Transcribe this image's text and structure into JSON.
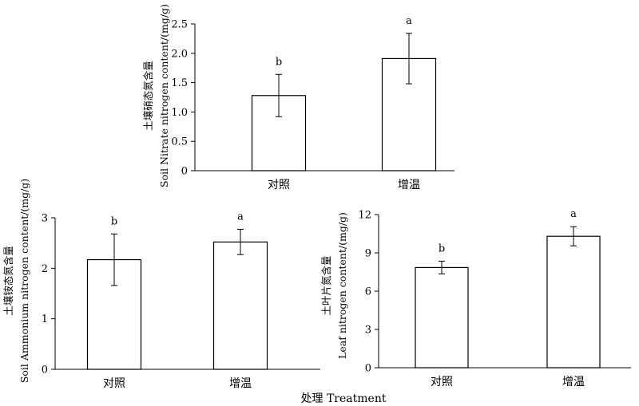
{
  "chart_data": [
    {
      "type": "bar",
      "categories": [
        "对照",
        "增温"
      ],
      "values": [
        1.28,
        1.91
      ],
      "errors": [
        0.36,
        0.43
      ],
      "significance": [
        "b",
        "a"
      ],
      "ylabel": [
        "土壤硝态氮含量",
        "Soil Nitrate nitrogen content/(mg/g)"
      ],
      "ylim": [
        0,
        2.5
      ],
      "yticks": [
        "0",
        "0.5",
        "1.0",
        "1.5",
        "2.0",
        "2.5"
      ]
    },
    {
      "type": "bar",
      "categories": [
        "对照",
        "增温"
      ],
      "values": [
        2.17,
        2.52
      ],
      "errors": [
        0.51,
        0.25
      ],
      "significance": [
        "b",
        "a"
      ],
      "ylabel": [
        "土壤铵态氮含量",
        "Soil Ammonium nitrogen content/(mg/g)"
      ],
      "ylim": [
        0,
        3
      ],
      "yticks": [
        "0",
        "1",
        "2",
        "3"
      ]
    },
    {
      "type": "bar",
      "categories": [
        "对照",
        "增温"
      ],
      "values": [
        7.85,
        10.3
      ],
      "errors": [
        0.5,
        0.75
      ],
      "significance": [
        "b",
        "a"
      ],
      "ylabel": [
        "土叶片氮含量",
        "Leaf nitrogen content/(mg/g)"
      ],
      "ylim": [
        0,
        12
      ],
      "yticks": [
        "0",
        "3",
        "6",
        "9",
        "12"
      ]
    }
  ],
  "common_xlabel": "处理  Treatment"
}
